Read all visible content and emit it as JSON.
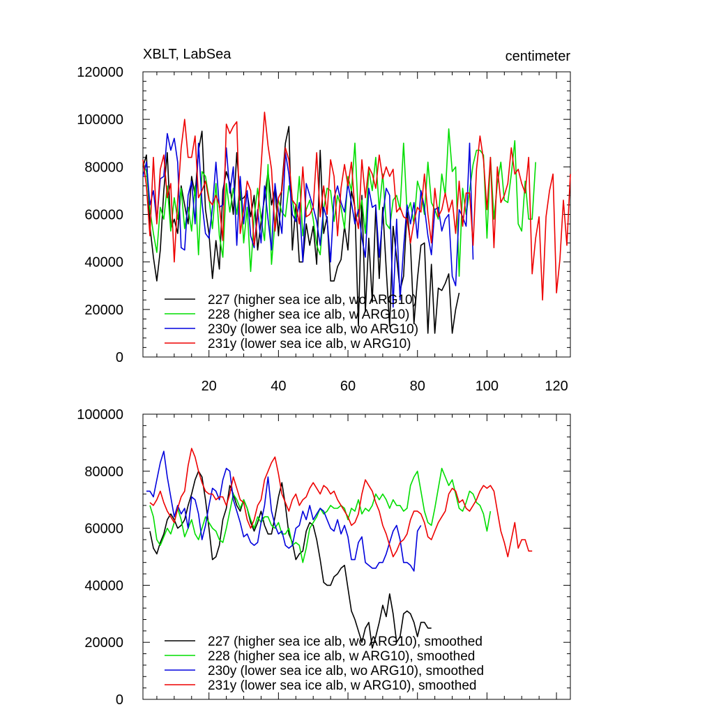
{
  "chart_data": [
    {
      "type": "line",
      "title": "XBLT, LabSea",
      "units_label": "centimeter",
      "xlabel": "",
      "ylabel": "",
      "xlim": [
        1,
        124
      ],
      "ylim": [
        0,
        120000
      ],
      "y_ticks": [
        0,
        20000,
        40000,
        60000,
        80000,
        100000,
        120000
      ],
      "y_tick_labels": [
        "0",
        "20000",
        "40000",
        "60000",
        "80000",
        "100000",
        "120000"
      ],
      "x_ticks": [
        20,
        40,
        60,
        80,
        100,
        120
      ],
      "x_tick_labels": [
        "20",
        "40",
        "60",
        "80",
        "100",
        "120"
      ],
      "legend_position": "bottom-left",
      "series": [
        {
          "name": "227 (higher sea ice alb, wo ARG10)",
          "color": "#000000",
          "x_start": 1,
          "values": [
            80000,
            85000,
            55000,
            42000,
            32000,
            45000,
            70000,
            86000,
            54000,
            58000,
            52000,
            72000,
            64000,
            56000,
            76000,
            68000,
            87000,
            95000,
            62000,
            52000,
            33000,
            49000,
            37000,
            70000,
            78000,
            73000,
            60000,
            86000,
            66000,
            67000,
            69000,
            59000,
            68000,
            45000,
            57000,
            67000,
            78000,
            64000,
            71000,
            51000,
            72000,
            90000,
            97000,
            45000,
            64000,
            40000,
            40000,
            56000,
            47000,
            55000,
            39000,
            87000,
            52000,
            59000,
            32000,
            32000,
            38000,
            41000,
            55000,
            45000,
            70000,
            63000,
            13000,
            68000,
            19000,
            50000,
            23000,
            63000,
            33000,
            63000,
            37000,
            13000,
            55000,
            42000,
            28000,
            34000,
            62000,
            47000,
            14000,
            33000,
            47000,
            48000,
            10000,
            39000,
            10000,
            29000,
            28000,
            31000,
            35000,
            10000,
            20000,
            27000
          ]
        },
        {
          "name": "228 (higher sea ice alb, w ARG10)",
          "color": "#00dd00",
          "x_start": 1,
          "values": [
            82000,
            78000,
            62000,
            52000,
            44000,
            63000,
            58000,
            72000,
            53000,
            67000,
            58000,
            71000,
            54000,
            63000,
            53000,
            72000,
            43000,
            78000,
            76000,
            67000,
            54000,
            73000,
            51000,
            42000,
            73000,
            61000,
            71000,
            60000,
            73000,
            48000,
            63000,
            36000,
            59000,
            71000,
            58000,
            49000,
            81000,
            39000,
            57000,
            66000,
            61000,
            59000,
            72000,
            66000,
            58000,
            76000,
            51000,
            62000,
            66000,
            58000,
            47000,
            43000,
            62000,
            71000,
            70000,
            57000,
            68000,
            63000,
            54000,
            76000,
            70000,
            90000,
            59000,
            66000,
            52000,
            79000,
            70000,
            84000,
            62000,
            77000,
            56000,
            54000,
            66000,
            68000,
            62000,
            90000,
            61000,
            65000,
            56000,
            74000,
            69000,
            60000,
            82000,
            65000,
            62000,
            58000,
            77000,
            68000,
            96000,
            78000,
            80000,
            34000,
            71000,
            60000,
            70000,
            81000,
            87000,
            87000,
            85000,
            50000,
            84000,
            58000,
            73000,
            82000,
            66000,
            65000,
            77000,
            91000,
            56000,
            53000,
            74000,
            58000,
            58000,
            82000
          ]
        },
        {
          "name": "230y (lower sea ice alb, wo ARG10)",
          "color": "#0000dd",
          "x_start": 1,
          "values": [
            76000,
            82000,
            64000,
            70000,
            57000,
            75000,
            76000,
            94000,
            87000,
            92000,
            82000,
            46000,
            45000,
            68000,
            74000,
            56000,
            90000,
            65000,
            52000,
            50000,
            63000,
            82000,
            63000,
            64000,
            88000,
            69000,
            80000,
            47000,
            76000,
            56000,
            70000,
            51000,
            46000,
            62000,
            48000,
            72000,
            58000,
            45000,
            73000,
            61000,
            52000,
            86000,
            77000,
            60000,
            57000,
            65000,
            40000,
            73000,
            68000,
            63000,
            57000,
            47000,
            63000,
            58000,
            40000,
            67000,
            72000,
            65000,
            61000,
            73000,
            65000,
            56000,
            62000,
            50000,
            42000,
            71000,
            63000,
            64000,
            42000,
            59000,
            71000,
            68000,
            21000,
            58000,
            24000,
            46000,
            64000,
            56000,
            65000,
            50000,
            70000,
            63000,
            51000,
            43000,
            62000,
            63000,
            53000,
            58000,
            60000,
            34000,
            30000,
            62000,
            59000,
            55000,
            90000,
            41000
          ]
        },
        {
          "name": "231y (lower sea ice alb, w ARG10)",
          "color": "#ee0000",
          "x_start": 1,
          "values": [
            83000,
            72000,
            51000,
            84000,
            56000,
            79000,
            85000,
            67000,
            73000,
            40000,
            66000,
            88000,
            100000,
            84000,
            84000,
            93000,
            67000,
            70000,
            74000,
            66000,
            64000,
            68000,
            64000,
            49000,
            98000,
            94000,
            97000,
            99000,
            52000,
            62000,
            74000,
            70000,
            47000,
            59000,
            80000,
            103000,
            89000,
            79000,
            53000,
            67000,
            70000,
            88000,
            83000,
            66000,
            64000,
            56000,
            80000,
            59000,
            60000,
            63000,
            86000,
            59000,
            72000,
            60000,
            83000,
            76000,
            51000,
            71000,
            81000,
            72000,
            82000,
            62000,
            54000,
            83000,
            67000,
            80000,
            77000,
            71000,
            85000,
            75000,
            80000,
            76000,
            79000,
            61000,
            63000,
            59000,
            58000,
            48000,
            57000,
            63000,
            61000,
            77000,
            60000,
            48000,
            71000,
            59000,
            62000,
            69000,
            61000,
            66000,
            52000,
            74000,
            55000,
            69000,
            69000,
            47000,
            79000,
            93000,
            83000,
            62000,
            84000,
            46000,
            80000,
            65000,
            68000,
            73000,
            88000,
            77000,
            79000,
            73000,
            69000,
            84000,
            35000,
            50000,
            59000,
            24000,
            59000,
            70000,
            77000,
            27000,
            41000,
            66000,
            47000,
            77000
          ]
        }
      ]
    },
    {
      "type": "line",
      "title": "",
      "xlabel": "",
      "ylabel": "",
      "xlim": [
        1,
        124
      ],
      "ylim": [
        0,
        100000
      ],
      "y_ticks": [
        0,
        20000,
        40000,
        60000,
        80000,
        100000
      ],
      "y_tick_labels": [
        "0",
        "20000",
        "40000",
        "60000",
        "80000",
        "100000"
      ],
      "x_ticks": [
        20,
        40,
        60,
        80,
        100,
        120
      ],
      "legend_position": "bottom-left",
      "series": [
        {
          "name": "227 (higher sea ice alb, wo ARG10), smoothed",
          "color": "#000000",
          "x_start": 3,
          "values": [
            59000,
            53000,
            51000,
            55000,
            58000,
            63000,
            65000,
            63000,
            60000,
            61000,
            63000,
            68000,
            72000,
            77000,
            80000,
            78000,
            70000,
            60000,
            49000,
            50000,
            54000,
            63000,
            67000,
            75000,
            72000,
            68000,
            66000,
            70000,
            67000,
            62000,
            59000,
            62000,
            66000,
            61000,
            58000,
            58000,
            64000,
            71000,
            76000,
            68000,
            58000,
            55000,
            49000,
            51000,
            52000,
            59000,
            62000,
            61000,
            56000,
            49000,
            41000,
            40000,
            40000,
            43000,
            44000,
            46000,
            47000,
            39000,
            31000,
            28000,
            24000,
            20000,
            25000,
            27000,
            18000,
            22000,
            27000,
            33000,
            29000,
            37000,
            30000,
            20000,
            22000,
            30000,
            31000,
            30000,
            27000,
            22000,
            27000,
            27000,
            25000,
            25000
          ]
        },
        {
          "name": "228 (higher sea ice alb, w ARG10), smoothed",
          "color": "#00dd00",
          "x_start": 3,
          "values": [
            68000,
            64000,
            56000,
            54000,
            57000,
            60000,
            58000,
            62000,
            67000,
            63000,
            57000,
            60000,
            63000,
            58000,
            56000,
            60000,
            64000,
            62000,
            60000,
            59000,
            56000,
            55000,
            60000,
            66000,
            72000,
            70000,
            67000,
            70000,
            67000,
            63000,
            60000,
            64000,
            62000,
            64000,
            64000,
            61000,
            60000,
            62000,
            58000,
            58000,
            60000,
            54000,
            55000,
            54000,
            48000,
            53000,
            60000,
            62000,
            64000,
            67000,
            65000,
            66000,
            68000,
            67000,
            67000,
            68000,
            67000,
            63000,
            67000,
            66000,
            70000,
            65000,
            67000,
            66000,
            68000,
            72000,
            70000,
            72000,
            70000,
            67000,
            70000,
            68000,
            68000,
            66000,
            67000,
            75000,
            78000,
            80000,
            73000,
            66000,
            62000,
            61000,
            67000,
            74000,
            81000,
            78000,
            75000,
            77000,
            72000,
            67000,
            66000,
            69000,
            73000,
            72000,
            69000,
            68000,
            65000,
            59000,
            66000
          ]
        },
        {
          "name": "230y (lower sea ice alb, wo ARG10), smoothed",
          "color": "#0000dd",
          "x_start": 2,
          "values": [
            73000,
            73000,
            71000,
            77000,
            83000,
            87000,
            78000,
            71000,
            64000,
            68000,
            65000,
            67000,
            60000,
            71000,
            70000,
            65000,
            56000,
            61000,
            68000,
            74000,
            73000,
            70000,
            77000,
            81000,
            80000,
            70000,
            66000,
            62000,
            57000,
            58000,
            55000,
            54000,
            55000,
            62000,
            68000,
            78000,
            66000,
            61000,
            58000,
            59000,
            54000,
            53000,
            54000,
            60000,
            61000,
            66000,
            63000,
            68000,
            63000,
            65000,
            67000,
            66000,
            63000,
            60000,
            59000,
            63000,
            58000,
            61000,
            57000,
            49000,
            49000,
            55000,
            57000,
            48000,
            47000,
            46000,
            46000,
            48000,
            48000,
            51000,
            55000,
            59000,
            61000,
            56000,
            48000,
            48000,
            47000,
            45000,
            59000,
            61000
          ]
        },
        {
          "name": "231y (lower sea ice alb, w ARG10), smoothed",
          "color": "#ee0000",
          "x_start": 3,
          "values": [
            69000,
            68000,
            70000,
            73000,
            69000,
            66000,
            64000,
            62000,
            67000,
            71000,
            73000,
            82000,
            88000,
            85000,
            80000,
            76000,
            73000,
            72000,
            72000,
            70000,
            71000,
            71000,
            68000,
            72000,
            78000,
            74000,
            70000,
            69000,
            63000,
            60000,
            63000,
            68000,
            70000,
            77000,
            80000,
            83000,
            85000,
            79000,
            72000,
            69000,
            66000,
            70000,
            72000,
            68000,
            70000,
            71000,
            74000,
            76000,
            74000,
            72000,
            75000,
            74000,
            72000,
            73000,
            70000,
            68000,
            66000,
            64000,
            61000,
            62000,
            65000,
            72000,
            77000,
            75000,
            73000,
            69000,
            66000,
            61000,
            58000,
            54000,
            50000,
            52000,
            55000,
            56000,
            58000,
            63000,
            66000,
            66000,
            65000,
            62000,
            57000,
            56000,
            59000,
            62000,
            64000,
            66000,
            72000,
            74000,
            73000,
            69000,
            70000,
            67000,
            66000,
            68000,
            70000,
            73000,
            75000,
            74000,
            75000,
            73000,
            66000,
            59000,
            55000,
            50000,
            56000,
            62000,
            53000,
            56000,
            56000,
            52000,
            52000
          ]
        }
      ]
    }
  ]
}
